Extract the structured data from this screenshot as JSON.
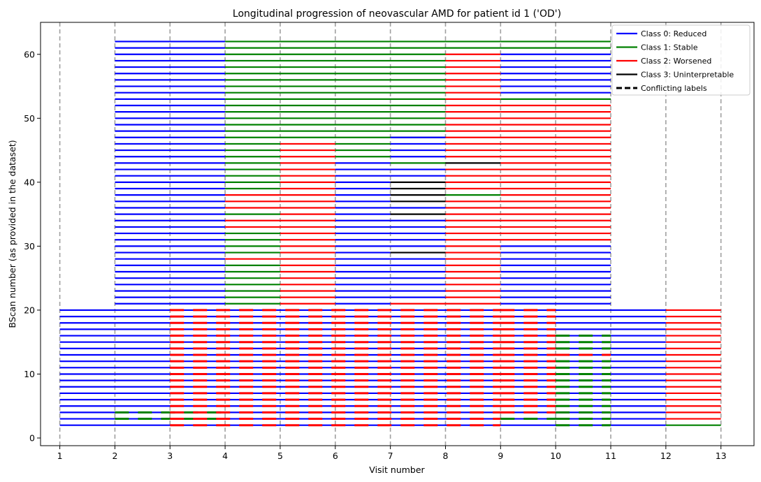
{
  "chart_data": {
    "type": "line",
    "title": "Longitudinal progression of neovascular AMD for patient id 1 ('OD')",
    "xlabel": "Visit number",
    "ylabel": "BScan number (as provided in the dataset)",
    "xlim": [
      0.65,
      13.6
    ],
    "ylim": [
      -1.2,
      65
    ],
    "x_ticks": [
      1,
      2,
      3,
      4,
      5,
      6,
      7,
      8,
      9,
      10,
      11,
      12,
      13
    ],
    "y_ticks": [
      0,
      10,
      20,
      30,
      40,
      50,
      60
    ],
    "visit_gridlines": [
      1,
      2,
      3,
      4,
      5,
      6,
      7,
      8,
      9,
      10,
      11,
      12,
      13
    ],
    "legend_position": "top-right",
    "colors": {
      "class0": "#0000ff",
      "class1": "#008000",
      "class2": "#ff0000",
      "class3": "#000000",
      "gridline": "#a0a0a0"
    },
    "legend": [
      {
        "label": "Class 0: Reduced",
        "color": "#0000ff",
        "style": "solid"
      },
      {
        "label": "Class 1: Stable",
        "color": "#008000",
        "style": "solid"
      },
      {
        "label": "Class 2: Worsened",
        "color": "#ff0000",
        "style": "solid"
      },
      {
        "label": "Class 3: Uninterpretable",
        "color": "#000000",
        "style": "solid"
      },
      {
        "label": "Conflicting labels",
        "color": "#000000",
        "style": "dashed"
      }
    ],
    "segments": [
      {
        "x0": 1,
        "x1": 2,
        "class": 0,
        "bscans": [
          2,
          3,
          4,
          5,
          6,
          7,
          8,
          9,
          10,
          11,
          12,
          13,
          14,
          15,
          16,
          17,
          18,
          19,
          20
        ]
      },
      {
        "x0": 2,
        "x1": 4,
        "class": 0,
        "bscans": [
          2,
          3,
          4,
          5,
          6,
          7,
          8,
          9,
          10,
          11,
          12,
          13,
          14,
          15,
          16,
          17,
          18,
          19,
          20,
          21,
          22,
          23,
          24,
          25,
          26,
          27,
          28,
          29,
          30,
          31,
          32,
          33,
          34,
          35,
          36,
          37,
          38,
          39,
          40,
          41,
          42,
          43,
          44,
          45,
          46,
          47,
          48,
          49,
          50,
          51,
          52,
          53,
          54,
          55,
          56,
          57,
          58,
          59,
          60,
          61,
          62
        ]
      },
      {
        "x0": 4,
        "x1": 5,
        "class": 1,
        "bscans": [
          21,
          22,
          23,
          24,
          25,
          26,
          27,
          29,
          30,
          31,
          32,
          35,
          39,
          40,
          41,
          42,
          43,
          44,
          45,
          46,
          47,
          48,
          49,
          50,
          51,
          52,
          53,
          54,
          55,
          56,
          57,
          58,
          59,
          60,
          61,
          62
        ]
      },
      {
        "x0": 4,
        "x1": 5,
        "class": 2,
        "bscans": [
          28,
          33,
          34,
          36,
          37,
          38
        ]
      },
      {
        "x0": 4,
        "x1": 11,
        "class": 0,
        "bscans": [
          2,
          3,
          4,
          5,
          6,
          7,
          8,
          9,
          10,
          11,
          12,
          13,
          14,
          15,
          16,
          17,
          18,
          19,
          20
        ]
      },
      {
        "x0": 5,
        "x1": 6,
        "class": 2,
        "bscans": [
          21,
          22,
          23,
          24,
          25,
          26,
          27,
          28,
          29,
          30,
          31,
          32,
          33,
          34,
          35,
          36,
          37,
          38,
          39,
          40,
          41,
          42,
          43,
          44,
          45,
          46
        ]
      },
      {
        "x0": 5,
        "x1": 8,
        "class": 1,
        "bscans": [
          47,
          48,
          49,
          50,
          51,
          52,
          53,
          54,
          55,
          56,
          57,
          58,
          59,
          60,
          61,
          62
        ]
      },
      {
        "x0": 6,
        "x1": 7,
        "class": 0,
        "bscans": [
          21,
          22,
          23,
          24,
          25,
          26,
          27,
          28,
          29,
          30,
          31,
          32,
          33,
          34,
          35,
          36,
          37,
          38,
          39,
          40,
          41,
          42,
          43
        ]
      },
      {
        "x0": 6,
        "x1": 7,
        "class": 1,
        "bscans": [
          44,
          45,
          46
        ]
      },
      {
        "x0": 7,
        "x1": 8,
        "class": 0,
        "bscans": [
          22,
          23,
          24,
          25,
          26,
          27,
          28,
          30,
          31,
          32,
          33,
          34,
          36,
          41,
          42,
          44,
          45,
          46,
          47
        ]
      },
      {
        "x0": 7,
        "x1": 8,
        "class": 2,
        "bscans": [
          21
        ]
      },
      {
        "x0": 7,
        "x1": 8,
        "class": 3,
        "bscans": [
          29,
          35,
          37,
          38,
          39,
          40
        ]
      },
      {
        "x0": 7,
        "x1": 8,
        "class": 1,
        "bscans": [
          43
        ]
      },
      {
        "x0": 8,
        "x1": 9,
        "class": 2,
        "bscans": [
          21,
          22,
          23,
          24,
          25,
          26,
          27,
          28,
          29,
          30,
          31,
          32,
          33,
          34,
          35,
          36,
          37,
          39,
          40,
          41,
          42,
          44,
          45,
          46,
          47,
          48,
          49,
          50,
          51,
          52,
          53,
          54,
          55,
          56,
          57,
          58,
          59,
          60
        ]
      },
      {
        "x0": 8,
        "x1": 9,
        "class": 1,
        "bscans": [
          38,
          61,
          62
        ]
      },
      {
        "x0": 8,
        "x1": 9,
        "class": 3,
        "bscans": [
          43
        ]
      },
      {
        "x0": 9,
        "x1": 11,
        "class": 0,
        "bscans": [
          21,
          22,
          23,
          24,
          25,
          26,
          27,
          28,
          29,
          30,
          54,
          55,
          56,
          57,
          58,
          59,
          60
        ]
      },
      {
        "x0": 9,
        "x1": 11,
        "class": 2,
        "bscans": [
          31,
          32,
          33,
          34,
          35,
          36,
          37,
          38,
          39,
          40,
          41,
          42,
          43,
          44,
          45,
          46,
          47,
          48,
          49,
          50,
          51,
          52
        ]
      },
      {
        "x0": 9,
        "x1": 11,
        "class": 1,
        "bscans": [
          53,
          61,
          62
        ]
      },
      {
        "x0": 11,
        "x1": 12,
        "class": 0,
        "bscans": [
          2,
          3,
          4,
          5,
          6,
          7,
          8,
          9,
          10,
          11,
          12,
          13,
          14,
          15,
          16,
          17,
          18,
          19,
          20
        ]
      },
      {
        "x0": 12,
        "x1": 13,
        "class": 2,
        "bscans": [
          3,
          4,
          5,
          6,
          7,
          8,
          9,
          10,
          11,
          12,
          13,
          14,
          15,
          16,
          17,
          18,
          19,
          20
        ]
      },
      {
        "x0": 12,
        "x1": 13,
        "class": 1,
        "bscans": [
          2
        ]
      }
    ],
    "conflicts": [
      {
        "x0": 2,
        "x1": 4,
        "class": 1,
        "bscans": [
          3,
          4
        ]
      },
      {
        "x0": 3,
        "x1": 9,
        "class": 2,
        "bscans": [
          2,
          3,
          4,
          5,
          6,
          7,
          8,
          9,
          10,
          11,
          12,
          13,
          14,
          15,
          16,
          17,
          18,
          19,
          20
        ]
      },
      {
        "x0": 9,
        "x1": 10,
        "class": 2,
        "bscans": [
          4,
          5,
          6,
          7,
          8,
          9,
          10,
          11,
          12,
          13,
          14,
          15,
          16,
          17,
          18,
          19,
          20
        ]
      },
      {
        "x0": 9,
        "x1": 10,
        "class": 1,
        "bscans": [
          3
        ]
      },
      {
        "x0": 10,
        "x1": 11,
        "class": 1,
        "bscans": [
          2,
          3,
          4,
          5,
          6,
          7,
          8,
          9,
          10,
          11,
          12,
          14,
          15,
          16
        ]
      },
      {
        "x0": 10,
        "x1": 11,
        "class": 2,
        "bscans": [
          13
        ]
      }
    ]
  }
}
